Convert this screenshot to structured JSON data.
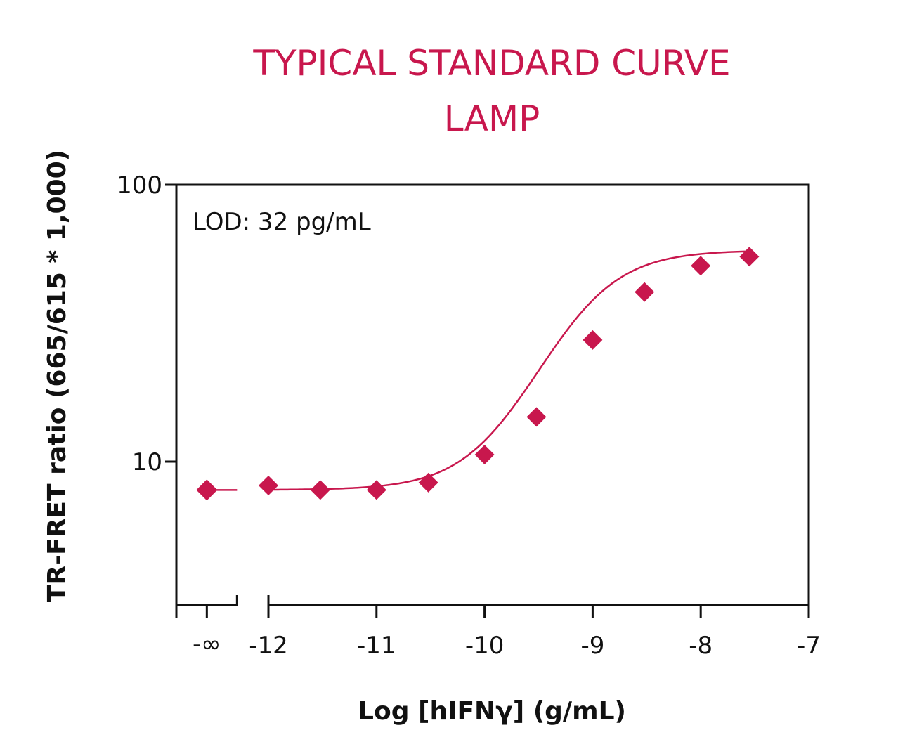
{
  "colors": {
    "accent": "#c8174d",
    "axis": "#111111",
    "background": "#ffffff"
  },
  "chart_data": {
    "type": "scatter",
    "title_line1": "TYPICAL STANDARD CURVE",
    "title_line2": "LAMP",
    "xlabel": "Log [hIFNγ] (g/mL)",
    "ylabel": "TR-FRET ratio (665/615 * 1,000)",
    "annotation": "LOD: 32 pg/mL",
    "y_scale": "log",
    "xlim": [
      -12.86,
      -7
    ],
    "ylim": [
      4,
      100
    ],
    "x_ticks": [
      -12,
      -11,
      -10,
      -9,
      -8,
      -7
    ],
    "x_tick_labels": [
      "-12",
      "-11",
      "-10",
      "-9",
      "-8",
      "-7"
    ],
    "x_break_label": "-∞",
    "x_break_position": -12.57,
    "y_ticks": [
      10,
      100
    ],
    "y_tick_labels": [
      "10",
      "100"
    ],
    "legend": "none",
    "grid": false,
    "series": [
      {
        "marker": "diamond",
        "x": [
          -12.57,
          -12,
          -11.52,
          -11,
          -10.52,
          -10,
          -9.52,
          -9,
          -8.52,
          -8,
          -7.55
        ],
        "y": [
          7.9,
          8.2,
          7.9,
          7.9,
          8.4,
          10.6,
          14.5,
          27.5,
          41,
          51,
          55
        ]
      }
    ]
  }
}
